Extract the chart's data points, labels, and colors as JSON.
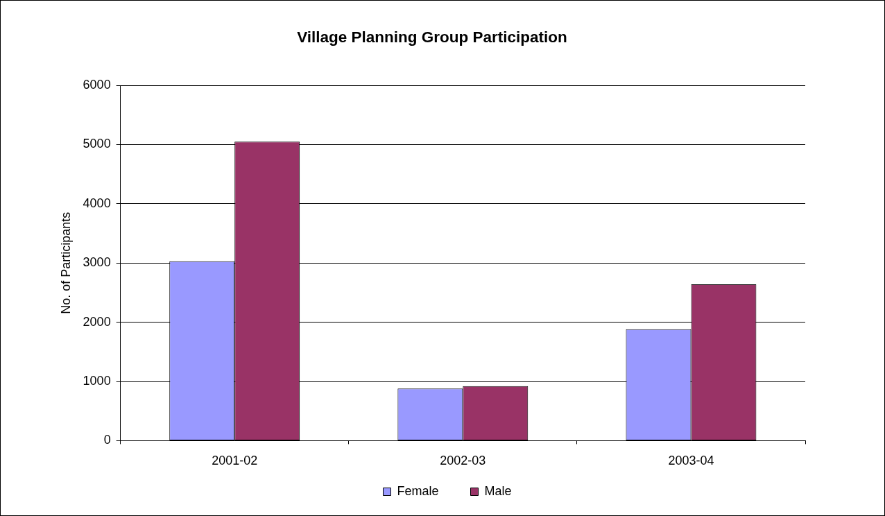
{
  "chart_data": {
    "type": "bar",
    "title": "Village Planning Group Participation",
    "ylabel": "No. of Participants",
    "categories": [
      "2001-02",
      "2002-03",
      "2003-04"
    ],
    "series": [
      {
        "name": "Female",
        "color": "#9999ff",
        "values": [
          3030,
          880,
          1880
        ]
      },
      {
        "name": "Male",
        "color": "#993366",
        "values": [
          5050,
          920,
          2640
        ]
      }
    ],
    "ylim": [
      0,
      6000
    ],
    "yticks": [
      0,
      1000,
      2000,
      3000,
      4000,
      5000,
      6000
    ],
    "grid": "y",
    "legend": "bottom"
  }
}
